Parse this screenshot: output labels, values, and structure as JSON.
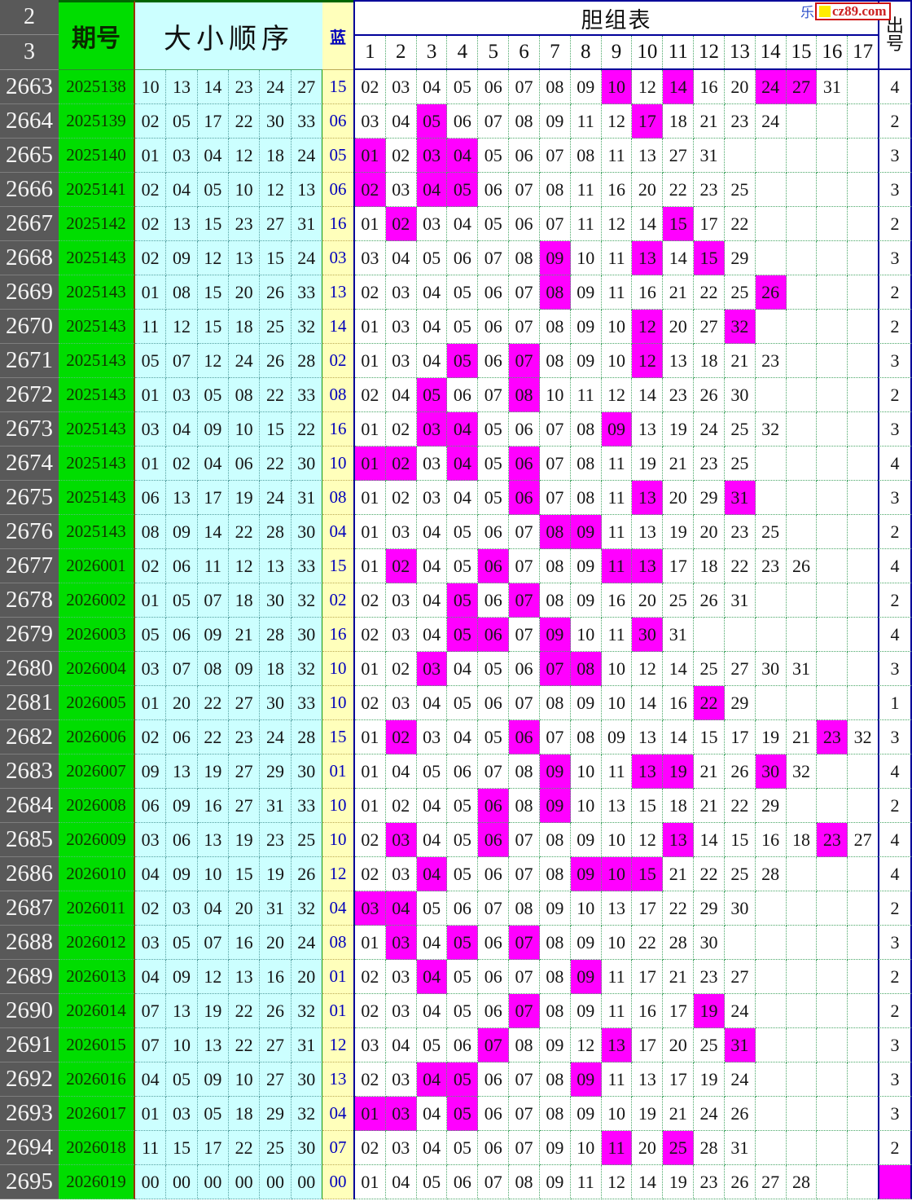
{
  "watermark": {
    "prefix_char": "乐",
    "site": "cz89.com"
  },
  "header": {
    "corner_top": "2",
    "corner_bottom": "3",
    "period": "期号",
    "order": "大小顺序",
    "blue": "蓝",
    "dan": "胆组表",
    "dan_columns": [
      "1",
      "2",
      "3",
      "4",
      "5",
      "6",
      "7",
      "8",
      "9",
      "10",
      "11",
      "12",
      "13",
      "14",
      "15",
      "16",
      "17"
    ],
    "out_top": "出",
    "out_bottom": "号"
  },
  "colors": {
    "highlight": "#ff00ff",
    "green": "#00dd00",
    "cyan": "#ccffff",
    "yellow": "#ffffbb",
    "gray": "#595959",
    "navy": "#000099"
  },
  "rows": [
    {
      "seq": "2663",
      "period": "2025138",
      "nums": [
        "10",
        "13",
        "14",
        "23",
        "24",
        "27"
      ],
      "blue": "15",
      "dan": [
        "02",
        "03",
        "04",
        "05",
        "06",
        "07",
        "08",
        "09",
        "10",
        "12",
        "14",
        "16",
        "20",
        "24",
        "27",
        "31"
      ],
      "hl": [
        "10",
        "14",
        "24",
        "27"
      ],
      "out": "4"
    },
    {
      "seq": "2664",
      "period": "2025139",
      "nums": [
        "02",
        "05",
        "17",
        "22",
        "30",
        "33"
      ],
      "blue": "06",
      "dan": [
        "03",
        "04",
        "05",
        "06",
        "07",
        "08",
        "09",
        "11",
        "12",
        "17",
        "18",
        "21",
        "23",
        "24"
      ],
      "hl": [
        "05",
        "17"
      ],
      "out": "2"
    },
    {
      "seq": "2665",
      "period": "2025140",
      "nums": [
        "01",
        "03",
        "04",
        "12",
        "18",
        "24"
      ],
      "blue": "05",
      "dan": [
        "01",
        "02",
        "03",
        "04",
        "05",
        "06",
        "07",
        "08",
        "11",
        "13",
        "27",
        "31"
      ],
      "hl": [
        "01",
        "03",
        "04"
      ],
      "out": "3"
    },
    {
      "seq": "2666",
      "period": "2025141",
      "nums": [
        "02",
        "04",
        "05",
        "10",
        "12",
        "13"
      ],
      "blue": "06",
      "dan": [
        "02",
        "03",
        "04",
        "05",
        "06",
        "07",
        "08",
        "11",
        "16",
        "20",
        "22",
        "23",
        "25"
      ],
      "hl": [
        "02",
        "04",
        "05"
      ],
      "out": "3"
    },
    {
      "seq": "2667",
      "period": "2025142",
      "nums": [
        "02",
        "13",
        "15",
        "23",
        "27",
        "31"
      ],
      "blue": "16",
      "dan": [
        "01",
        "02",
        "03",
        "04",
        "05",
        "06",
        "07",
        "11",
        "12",
        "14",
        "15",
        "17",
        "22"
      ],
      "hl": [
        "02",
        "15"
      ],
      "out": "2"
    },
    {
      "seq": "2668",
      "period": "2025143",
      "nums": [
        "02",
        "09",
        "12",
        "13",
        "15",
        "24"
      ],
      "blue": "03",
      "dan": [
        "03",
        "04",
        "05",
        "06",
        "07",
        "08",
        "09",
        "10",
        "11",
        "13",
        "14",
        "15",
        "29"
      ],
      "hl": [
        "09",
        "13",
        "15"
      ],
      "out": "3"
    },
    {
      "seq": "2669",
      "period": "2025143",
      "nums": [
        "01",
        "08",
        "15",
        "20",
        "26",
        "33"
      ],
      "blue": "13",
      "dan": [
        "02",
        "03",
        "04",
        "05",
        "06",
        "07",
        "08",
        "09",
        "11",
        "16",
        "21",
        "22",
        "25",
        "26"
      ],
      "hl": [
        "08",
        "26"
      ],
      "out": "2"
    },
    {
      "seq": "2670",
      "period": "2025143",
      "nums": [
        "11",
        "12",
        "15",
        "18",
        "25",
        "32"
      ],
      "blue": "14",
      "dan": [
        "01",
        "03",
        "04",
        "05",
        "06",
        "07",
        "08",
        "09",
        "10",
        "12",
        "20",
        "27",
        "32"
      ],
      "hl": [
        "12",
        "32"
      ],
      "out": "2"
    },
    {
      "seq": "2671",
      "period": "2025143",
      "nums": [
        "05",
        "07",
        "12",
        "24",
        "26",
        "28"
      ],
      "blue": "02",
      "dan": [
        "01",
        "03",
        "04",
        "05",
        "06",
        "07",
        "08",
        "09",
        "10",
        "12",
        "13",
        "18",
        "21",
        "23"
      ],
      "hl": [
        "05",
        "07",
        "12"
      ],
      "out": "3"
    },
    {
      "seq": "2672",
      "period": "2025143",
      "nums": [
        "01",
        "03",
        "05",
        "08",
        "22",
        "33"
      ],
      "blue": "08",
      "dan": [
        "02",
        "04",
        "05",
        "06",
        "07",
        "08",
        "10",
        "11",
        "12",
        "14",
        "23",
        "26",
        "30"
      ],
      "hl": [
        "05",
        "08"
      ],
      "out": "2"
    },
    {
      "seq": "2673",
      "period": "2025143",
      "nums": [
        "03",
        "04",
        "09",
        "10",
        "15",
        "22"
      ],
      "blue": "16",
      "dan": [
        "01",
        "02",
        "03",
        "04",
        "05",
        "06",
        "07",
        "08",
        "09",
        "13",
        "19",
        "24",
        "25",
        "32"
      ],
      "hl": [
        "03",
        "04",
        "09"
      ],
      "out": "3"
    },
    {
      "seq": "2674",
      "period": "2025143",
      "nums": [
        "01",
        "02",
        "04",
        "06",
        "22",
        "30"
      ],
      "blue": "10",
      "dan": [
        "01",
        "02",
        "03",
        "04",
        "05",
        "06",
        "07",
        "08",
        "11",
        "19",
        "21",
        "23",
        "25"
      ],
      "hl": [
        "01",
        "02",
        "04",
        "06"
      ],
      "out": "4"
    },
    {
      "seq": "2675",
      "period": "2025143",
      "nums": [
        "06",
        "13",
        "17",
        "19",
        "24",
        "31"
      ],
      "blue": "08",
      "dan": [
        "01",
        "02",
        "03",
        "04",
        "05",
        "06",
        "07",
        "08",
        "11",
        "13",
        "20",
        "29",
        "31"
      ],
      "hl": [
        "06",
        "13",
        "31"
      ],
      "out": "3"
    },
    {
      "seq": "2676",
      "period": "2025143",
      "nums": [
        "08",
        "09",
        "14",
        "22",
        "28",
        "30"
      ],
      "blue": "04",
      "dan": [
        "01",
        "03",
        "04",
        "05",
        "06",
        "07",
        "08",
        "09",
        "11",
        "13",
        "19",
        "20",
        "23",
        "25"
      ],
      "hl": [
        "08",
        "09"
      ],
      "out": "2"
    },
    {
      "seq": "2677",
      "period": "2026001",
      "nums": [
        "02",
        "06",
        "11",
        "12",
        "13",
        "33"
      ],
      "blue": "15",
      "dan": [
        "01",
        "02",
        "04",
        "05",
        "06",
        "07",
        "08",
        "09",
        "11",
        "13",
        "17",
        "18",
        "22",
        "23",
        "26"
      ],
      "hl": [
        "02",
        "06",
        "11",
        "13"
      ],
      "out": "4"
    },
    {
      "seq": "2678",
      "period": "2026002",
      "nums": [
        "01",
        "05",
        "07",
        "18",
        "30",
        "32"
      ],
      "blue": "02",
      "dan": [
        "02",
        "03",
        "04",
        "05",
        "06",
        "07",
        "08",
        "09",
        "16",
        "20",
        "25",
        "26",
        "31"
      ],
      "hl": [
        "05",
        "07"
      ],
      "out": "2"
    },
    {
      "seq": "2679",
      "period": "2026003",
      "nums": [
        "05",
        "06",
        "09",
        "21",
        "28",
        "30"
      ],
      "blue": "16",
      "dan": [
        "02",
        "03",
        "04",
        "05",
        "06",
        "07",
        "09",
        "10",
        "11",
        "30",
        "31"
      ],
      "hl": [
        "05",
        "06",
        "09",
        "30"
      ],
      "out": "4"
    },
    {
      "seq": "2680",
      "period": "2026004",
      "nums": [
        "03",
        "07",
        "08",
        "09",
        "18",
        "32"
      ],
      "blue": "10",
      "dan": [
        "01",
        "02",
        "03",
        "04",
        "05",
        "06",
        "07",
        "08",
        "10",
        "12",
        "14",
        "25",
        "27",
        "30",
        "31"
      ],
      "hl": [
        "03",
        "07",
        "08"
      ],
      "out": "3"
    },
    {
      "seq": "2681",
      "period": "2026005",
      "nums": [
        "01",
        "20",
        "22",
        "27",
        "30",
        "33"
      ],
      "blue": "10",
      "dan": [
        "02",
        "03",
        "04",
        "05",
        "06",
        "07",
        "08",
        "09",
        "10",
        "14",
        "16",
        "22",
        "29"
      ],
      "hl": [
        "22"
      ],
      "out": "1"
    },
    {
      "seq": "2682",
      "period": "2026006",
      "nums": [
        "02",
        "06",
        "22",
        "23",
        "24",
        "28"
      ],
      "blue": "15",
      "dan": [
        "01",
        "02",
        "03",
        "04",
        "05",
        "06",
        "07",
        "08",
        "09",
        "13",
        "14",
        "15",
        "17",
        "19",
        "21",
        "23",
        "32"
      ],
      "hl": [
        "02",
        "06",
        "23"
      ],
      "out": "3"
    },
    {
      "seq": "2683",
      "period": "2026007",
      "nums": [
        "09",
        "13",
        "19",
        "27",
        "29",
        "30"
      ],
      "blue": "01",
      "dan": [
        "01",
        "04",
        "05",
        "06",
        "07",
        "08",
        "09",
        "10",
        "11",
        "13",
        "19",
        "21",
        "26",
        "30",
        "32"
      ],
      "hl": [
        "09",
        "13",
        "19",
        "30"
      ],
      "out": "4"
    },
    {
      "seq": "2684",
      "period": "2026008",
      "nums": [
        "06",
        "09",
        "16",
        "27",
        "31",
        "33"
      ],
      "blue": "10",
      "dan": [
        "01",
        "02",
        "04",
        "05",
        "06",
        "08",
        "09",
        "10",
        "13",
        "15",
        "18",
        "21",
        "22",
        "29"
      ],
      "hl": [
        "06",
        "09"
      ],
      "out": "2"
    },
    {
      "seq": "2685",
      "period": "2026009",
      "nums": [
        "03",
        "06",
        "13",
        "19",
        "23",
        "25"
      ],
      "blue": "10",
      "dan": [
        "02",
        "03",
        "04",
        "05",
        "06",
        "07",
        "08",
        "09",
        "10",
        "12",
        "13",
        "14",
        "15",
        "16",
        "18",
        "23",
        "27"
      ],
      "hl": [
        "03",
        "06",
        "13",
        "23"
      ],
      "out": "4"
    },
    {
      "seq": "2686",
      "period": "2026010",
      "nums": [
        "04",
        "09",
        "10",
        "15",
        "19",
        "26"
      ],
      "blue": "12",
      "dan": [
        "02",
        "03",
        "04",
        "05",
        "06",
        "07",
        "08",
        "09",
        "10",
        "15",
        "21",
        "22",
        "25",
        "28"
      ],
      "hl": [
        "04",
        "09",
        "10",
        "15"
      ],
      "out": "4"
    },
    {
      "seq": "2687",
      "period": "2026011",
      "nums": [
        "02",
        "03",
        "04",
        "20",
        "31",
        "32"
      ],
      "blue": "04",
      "dan": [
        "03",
        "04",
        "05",
        "06",
        "07",
        "08",
        "09",
        "10",
        "13",
        "17",
        "22",
        "29",
        "30"
      ],
      "hl": [
        "03",
        "04"
      ],
      "out": "2"
    },
    {
      "seq": "2688",
      "period": "2026012",
      "nums": [
        "03",
        "05",
        "07",
        "16",
        "20",
        "24"
      ],
      "blue": "08",
      "dan": [
        "01",
        "03",
        "04",
        "05",
        "06",
        "07",
        "08",
        "09",
        "10",
        "22",
        "28",
        "30"
      ],
      "hl": [
        "03",
        "05",
        "07"
      ],
      "out": "3"
    },
    {
      "seq": "2689",
      "period": "2026013",
      "nums": [
        "04",
        "09",
        "12",
        "13",
        "16",
        "20"
      ],
      "blue": "01",
      "dan": [
        "02",
        "03",
        "04",
        "05",
        "06",
        "07",
        "08",
        "09",
        "11",
        "17",
        "21",
        "23",
        "27"
      ],
      "hl": [
        "04",
        "09"
      ],
      "out": "2"
    },
    {
      "seq": "2690",
      "period": "2026014",
      "nums": [
        "07",
        "13",
        "19",
        "22",
        "26",
        "32"
      ],
      "blue": "01",
      "dan": [
        "02",
        "03",
        "04",
        "05",
        "06",
        "07",
        "08",
        "09",
        "11",
        "16",
        "17",
        "19",
        "24"
      ],
      "hl": [
        "07",
        "19"
      ],
      "out": "2"
    },
    {
      "seq": "2691",
      "period": "2026015",
      "nums": [
        "07",
        "10",
        "13",
        "22",
        "27",
        "31"
      ],
      "blue": "12",
      "dan": [
        "03",
        "04",
        "05",
        "06",
        "07",
        "08",
        "09",
        "12",
        "13",
        "17",
        "20",
        "25",
        "31"
      ],
      "hl": [
        "07",
        "13",
        "31"
      ],
      "out": "3"
    },
    {
      "seq": "2692",
      "period": "2026016",
      "nums": [
        "04",
        "05",
        "09",
        "10",
        "27",
        "30"
      ],
      "blue": "13",
      "dan": [
        "02",
        "03",
        "04",
        "05",
        "06",
        "07",
        "08",
        "09",
        "11",
        "13",
        "17",
        "19",
        "24"
      ],
      "hl": [
        "04",
        "05",
        "09"
      ],
      "out": "3"
    },
    {
      "seq": "2693",
      "period": "2026017",
      "nums": [
        "01",
        "03",
        "05",
        "18",
        "29",
        "32"
      ],
      "blue": "04",
      "dan": [
        "01",
        "03",
        "04",
        "05",
        "06",
        "07",
        "08",
        "09",
        "10",
        "19",
        "21",
        "24",
        "26"
      ],
      "hl": [
        "01",
        "03",
        "05"
      ],
      "out": "3"
    },
    {
      "seq": "2694",
      "period": "2026018",
      "nums": [
        "11",
        "15",
        "17",
        "22",
        "25",
        "30"
      ],
      "blue": "07",
      "dan": [
        "02",
        "03",
        "04",
        "05",
        "06",
        "07",
        "09",
        "10",
        "11",
        "20",
        "25",
        "28",
        "31"
      ],
      "hl": [
        "11",
        "25"
      ],
      "out": "2"
    },
    {
      "seq": "2695",
      "period": "2026019",
      "nums": [
        "00",
        "00",
        "00",
        "00",
        "00",
        "00"
      ],
      "blue": "00",
      "dan": [
        "01",
        "04",
        "05",
        "06",
        "07",
        "08",
        "09",
        "11",
        "12",
        "14",
        "19",
        "23",
        "26",
        "27",
        "28"
      ],
      "hl": [],
      "out": "",
      "out_hl": true
    }
  ]
}
